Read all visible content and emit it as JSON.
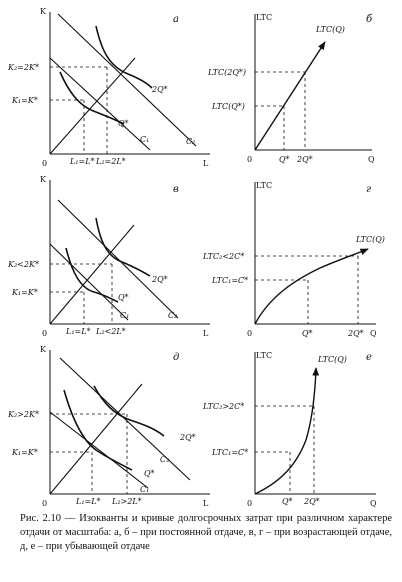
{
  "panel_a": {
    "letter": "a",
    "axis_y": "K",
    "axis_x": "L",
    "origin": "0",
    "tick_k2": "K₂=2K*",
    "tick_k1": "K₁=K*",
    "tick_l1": "L₁=L*",
    "tick_l2": "L₂=2L*",
    "curve_upper": "2Q*",
    "curve_lower": "Q*",
    "line_c1": "C₁",
    "line_c2": "C₂"
  },
  "panel_b": {
    "letter": "б",
    "axis_y": "LTC",
    "axis_x": "Q",
    "origin": "0",
    "curve": "LTC(Q)",
    "tick_y_upper": "LTC(2Q*)",
    "tick_y_lower": "LTC(Q*)",
    "tick_x1": "Q*",
    "tick_x2": "2Q*"
  },
  "panel_v": {
    "letter": "в",
    "axis_y": "K",
    "axis_x": "L",
    "origin": "0",
    "tick_k2": "K₂<2K*",
    "tick_k1": "K₁=K*",
    "tick_l1": "L₁=L*",
    "tick_l2": "L₂<2L*",
    "curve_upper": "2Q*",
    "curve_lower": "Q*",
    "line_c1": "C₁",
    "line_c2": "C₂"
  },
  "panel_g": {
    "letter": "г",
    "axis_y": "LTC",
    "axis_x": "Q",
    "origin": "0",
    "curve": "LTC(Q)",
    "tick_y_upper": "LTC₂<2C*",
    "tick_y_lower": "LTC₁=C*",
    "tick_x1": "Q*",
    "tick_x2": "2Q*"
  },
  "panel_d": {
    "letter": "д",
    "axis_y": "K",
    "axis_x": "L",
    "origin": "0",
    "tick_k2": "K₂>2K*",
    "tick_k1": "K₁=K*",
    "tick_l1": "L₁=L*",
    "tick_l2": "L₂>2L*",
    "curve_upper": "2Q*",
    "curve_lower": "Q*",
    "line_c1": "C₁",
    "line_c2": "C₂"
  },
  "panel_e": {
    "letter": "е",
    "axis_y": "LTC",
    "axis_x": "Q",
    "origin": "0",
    "curve": "LTC(Q)",
    "tick_y_upper": "LTC₂>2C*",
    "tick_y_lower": "LTC₁=C*",
    "tick_x1": "Q*",
    "tick_x2": "2Q*"
  },
  "caption": "Рис. 2.10 — Изокванты и кривые долгосрочных затрат при различном характере отдачи от масштаба: а, б – при постоянной отдаче, в, г – при возрастающей отдаче, д, е – при убывающей отдаче"
}
